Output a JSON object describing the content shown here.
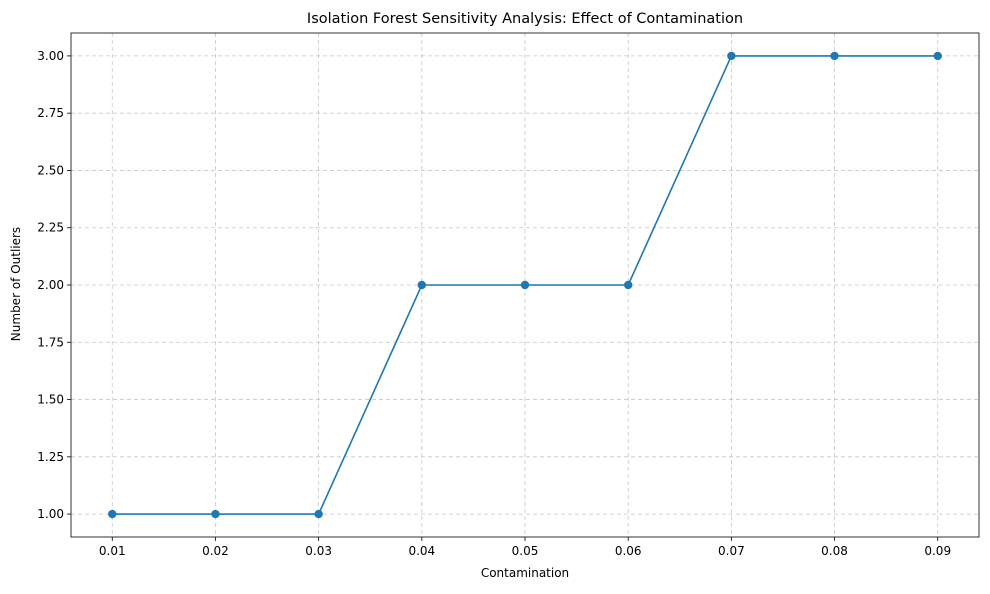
{
  "chart_data": {
    "type": "line",
    "title": "Isolation Forest Sensitivity Analysis: Effect of Contamination",
    "xlabel": "Contamination",
    "ylabel": "Number of Outliers",
    "x": [
      0.01,
      0.02,
      0.03,
      0.04,
      0.05,
      0.06,
      0.07,
      0.08,
      0.09
    ],
    "series": [
      {
        "values": [
          1,
          1,
          1,
          2,
          2,
          2,
          3,
          3,
          3
        ],
        "color": "#1f77b4",
        "marker": "circle"
      }
    ],
    "xticks": [
      "0.01",
      "0.02",
      "0.03",
      "0.04",
      "0.05",
      "0.06",
      "0.07",
      "0.08",
      "0.09"
    ],
    "yticks": [
      "1.00",
      "1.25",
      "1.50",
      "1.75",
      "2.00",
      "2.25",
      "2.50",
      "2.75",
      "3.00"
    ],
    "xlim": [
      0.006,
      0.094
    ],
    "ylim": [
      0.9,
      3.1
    ],
    "grid": true,
    "grid_style": "dashed",
    "legend": false
  }
}
